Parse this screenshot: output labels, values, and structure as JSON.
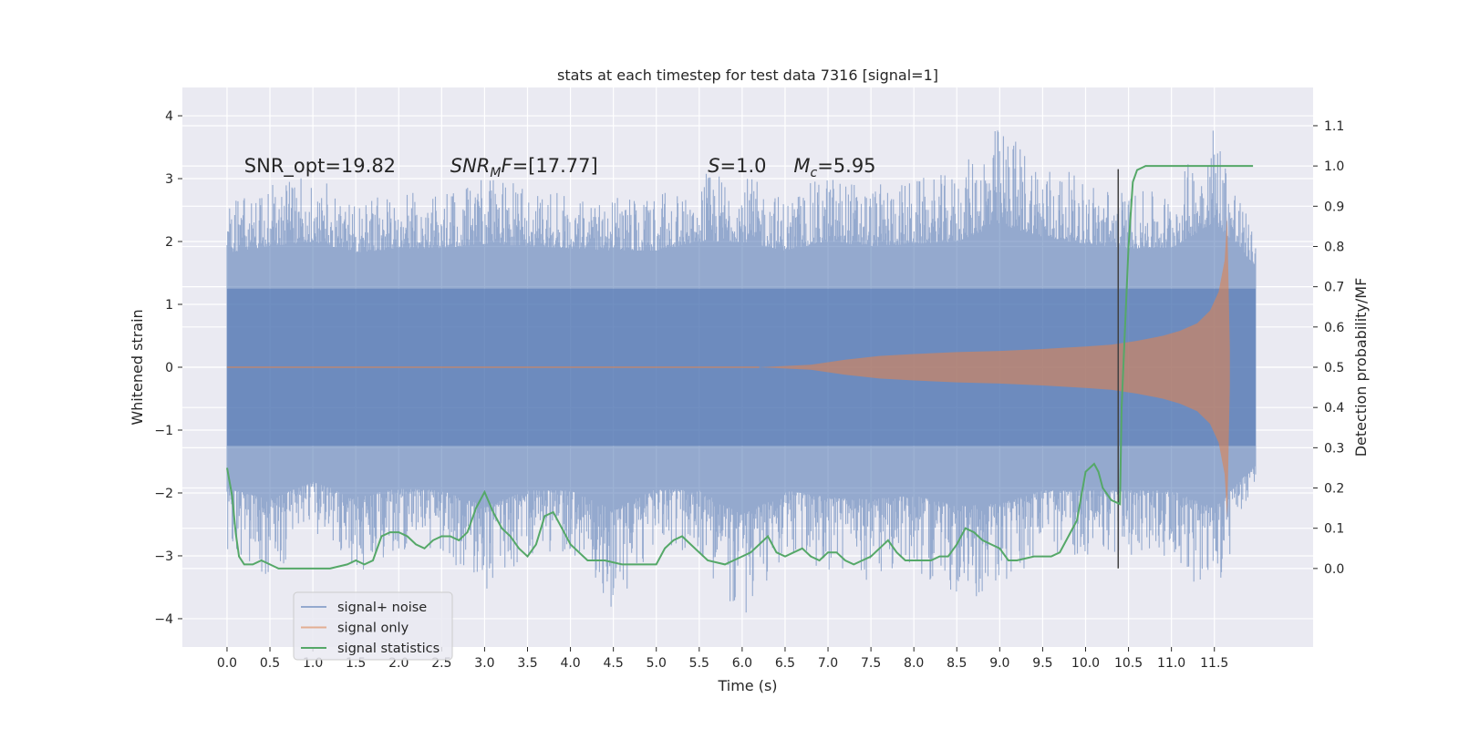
{
  "chart_data": {
    "type": "line",
    "title": "stats at each timestep for test data 7316 [signal=1]",
    "xlabel": "Time (s)",
    "ylabel": "Whitened strain",
    "y2label": "Detection probability/MF",
    "xlim": [
      -0.52,
      12.65
    ],
    "ylim": [
      -4.45,
      4.45
    ],
    "y2lim": [
      -0.195,
      1.195
    ],
    "grid": true,
    "legend_position": "lower-left",
    "x_ticks": [
      0.0,
      0.5,
      1.0,
      1.5,
      2.0,
      2.5,
      3.0,
      3.5,
      4.0,
      4.5,
      5.0,
      5.5,
      6.0,
      6.5,
      7.0,
      7.5,
      8.0,
      8.5,
      9.0,
      9.5,
      10.0,
      10.5,
      11.0,
      11.5
    ],
    "x_tick_labels": [
      "0.0",
      "0.5",
      "1.0",
      "1.5",
      "2.0",
      "2.5",
      "3.0",
      "3.5",
      "4.0",
      "4.5",
      "5.0",
      "5.5",
      "6.0",
      "6.5",
      "7.0",
      "7.5",
      "8.0",
      "8.5",
      "9.0",
      "9.5",
      "10.0",
      "10.5",
      "11.0",
      "11.5"
    ],
    "y_ticks": [
      -4,
      -3,
      -2,
      -1,
      0,
      1,
      2,
      3,
      4
    ],
    "y_tick_labels": [
      "−4",
      "−3",
      "−2",
      "−1",
      "0",
      "1",
      "2",
      "3",
      "4"
    ],
    "y2_ticks": [
      0.0,
      0.1,
      0.2,
      0.3,
      0.4,
      0.5,
      0.6,
      0.7,
      0.8,
      0.9,
      1.0,
      1.1
    ],
    "y2_tick_labels": [
      "0.0",
      "0.1",
      "0.2",
      "0.3",
      "0.4",
      "0.5",
      "0.6",
      "0.7",
      "0.8",
      "0.9",
      "1.0",
      "1.1"
    ],
    "series": [
      {
        "name": "signal+ noise",
        "color": "#4c72b0",
        "axis": "left",
        "range": [
          0.0,
          11.98
        ],
        "envelope_x": [
          0.0,
          0.5,
          1.0,
          1.5,
          2.0,
          2.5,
          3.0,
          3.5,
          4.0,
          4.5,
          5.0,
          5.5,
          6.0,
          6.5,
          7.0,
          7.5,
          8.0,
          8.5,
          9.0,
          9.5,
          10.0,
          10.5,
          11.0,
          11.5,
          11.98
        ],
        "envelope_max": [
          2.6,
          2.9,
          3.1,
          2.6,
          2.8,
          2.8,
          3.0,
          2.9,
          2.8,
          2.7,
          2.7,
          3.1,
          3.1,
          2.7,
          3.1,
          2.9,
          3.0,
          3.1,
          3.9,
          3.3,
          3.0,
          2.8,
          2.8,
          4.0,
          2.0
        ],
        "envelope_min": [
          -2.9,
          -3.4,
          -2.6,
          -3.3,
          -2.9,
          -3.0,
          -3.7,
          -3.0,
          -3.0,
          -3.9,
          -2.9,
          -3.0,
          -4.1,
          -3.0,
          -3.3,
          -3.4,
          -3.2,
          -3.7,
          -3.6,
          -3.0,
          -3.0,
          -3.0,
          -3.0,
          -3.8,
          -1.8
        ],
        "body_range": [
          -1.25,
          1.25
        ]
      },
      {
        "name": "signal only",
        "color": "#dd8452",
        "axis": "left",
        "x": [
          6.2,
          6.8,
          7.2,
          7.6,
          8.0,
          8.5,
          9.0,
          9.5,
          10.0,
          10.3,
          10.6,
          10.9,
          11.1,
          11.3,
          11.45,
          11.55,
          11.62,
          11.65,
          11.68
        ],
        "amplitude": [
          0.0,
          0.04,
          0.12,
          0.18,
          0.21,
          0.24,
          0.26,
          0.29,
          0.33,
          0.36,
          0.42,
          0.5,
          0.58,
          0.7,
          0.9,
          1.2,
          1.7,
          2.4,
          0.3
        ]
      },
      {
        "name": "signal statistics",
        "color": "#55a868",
        "axis": "right",
        "x": [
          0.0,
          0.06,
          0.1,
          0.14,
          0.2,
          0.3,
          0.4,
          0.5,
          0.6,
          0.7,
          0.8,
          0.9,
          1.0,
          1.2,
          1.4,
          1.5,
          1.6,
          1.7,
          1.8,
          1.9,
          2.0,
          2.1,
          2.2,
          2.3,
          2.4,
          2.5,
          2.6,
          2.7,
          2.8,
          2.9,
          3.0,
          3.1,
          3.2,
          3.3,
          3.4,
          3.5,
          3.6,
          3.7,
          3.8,
          3.9,
          4.0,
          4.2,
          4.4,
          4.6,
          4.8,
          5.0,
          5.1,
          5.2,
          5.3,
          5.4,
          5.6,
          5.8,
          5.9,
          6.0,
          6.1,
          6.2,
          6.3,
          6.4,
          6.5,
          6.6,
          6.7,
          6.8,
          6.9,
          7.0,
          7.1,
          7.2,
          7.3,
          7.4,
          7.5,
          7.6,
          7.7,
          7.8,
          7.9,
          8.0,
          8.2,
          8.3,
          8.4,
          8.5,
          8.6,
          8.7,
          8.8,
          8.9,
          9.0,
          9.1,
          9.2,
          9.4,
          9.6,
          9.7,
          9.8,
          9.9,
          10.0,
          10.1,
          10.15,
          10.2,
          10.3,
          10.4,
          10.42,
          10.46,
          10.5,
          10.55,
          10.6,
          10.7,
          10.8,
          11.0,
          11.5,
          11.95
        ],
        "values": [
          0.25,
          0.18,
          0.09,
          0.03,
          0.01,
          0.01,
          0.02,
          0.01,
          0.0,
          0.0,
          0.0,
          0.0,
          0.0,
          0.0,
          0.01,
          0.02,
          0.01,
          0.02,
          0.08,
          0.09,
          0.09,
          0.08,
          0.06,
          0.05,
          0.07,
          0.08,
          0.08,
          0.07,
          0.09,
          0.15,
          0.19,
          0.14,
          0.1,
          0.08,
          0.05,
          0.03,
          0.06,
          0.13,
          0.14,
          0.1,
          0.06,
          0.02,
          0.02,
          0.01,
          0.01,
          0.01,
          0.05,
          0.07,
          0.08,
          0.06,
          0.02,
          0.01,
          0.02,
          0.03,
          0.04,
          0.06,
          0.08,
          0.04,
          0.03,
          0.04,
          0.05,
          0.03,
          0.02,
          0.04,
          0.04,
          0.02,
          0.01,
          0.02,
          0.03,
          0.05,
          0.07,
          0.04,
          0.02,
          0.02,
          0.02,
          0.03,
          0.03,
          0.06,
          0.1,
          0.09,
          0.07,
          0.06,
          0.05,
          0.02,
          0.02,
          0.03,
          0.03,
          0.04,
          0.08,
          0.12,
          0.24,
          0.26,
          0.24,
          0.2,
          0.17,
          0.16,
          0.4,
          0.6,
          0.8,
          0.96,
          0.99,
          1.0,
          1.0,
          1.0,
          1.0,
          1.0
        ]
      }
    ],
    "vertical_line": {
      "x": 10.38,
      "color": "#404040",
      "y_range": [
        -3.2,
        3.15
      ]
    },
    "annotations": [
      {
        "text": "SNR_opt=19.82",
        "x": 0.2,
        "y": 3.2
      },
      {
        "text": "SNR",
        "x": 2.6,
        "y": 3.2,
        "italic": true,
        "subscript": "M",
        "suffix": "F=[17.77]"
      },
      {
        "text": "S",
        "x": 5.6,
        "y": 3.2,
        "italic": true,
        "suffix": "=1.0"
      },
      {
        "text": "M",
        "x": 6.6,
        "y": 3.2,
        "italic": true,
        "subscript": "c",
        "suffix": "=5.95"
      }
    ]
  }
}
